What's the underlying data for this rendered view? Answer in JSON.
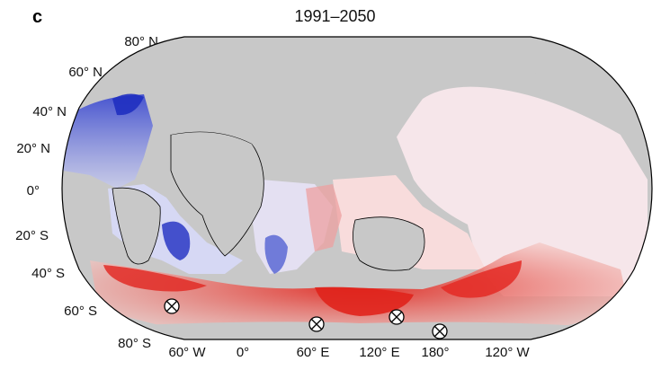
{
  "panel_label": "c",
  "title": "1991–2050",
  "latitude_labels": [
    "80° N",
    "60° N",
    "40° N",
    "20° N",
    "0°",
    "20° S",
    "40° S",
    "60° S",
    "80° S"
  ],
  "longitude_labels": [
    "60° W",
    "0°",
    "60° E",
    "120° E",
    "180°",
    "120° W"
  ],
  "colors": {
    "land": "#c8c8c8",
    "ocean_cool": "#2233cc",
    "ocean_warm": "#e8332a",
    "ocean_neutral": "#f4f0f4",
    "outline": "#000000"
  },
  "markers": [
    {
      "symbol": "circled-x",
      "longitude_label": "60° W"
    },
    {
      "symbol": "circled-x",
      "longitude_label": "60° E"
    },
    {
      "symbol": "circled-x",
      "longitude_label": "120° E"
    },
    {
      "symbol": "circled-x",
      "longitude_label": "180°"
    }
  ]
}
